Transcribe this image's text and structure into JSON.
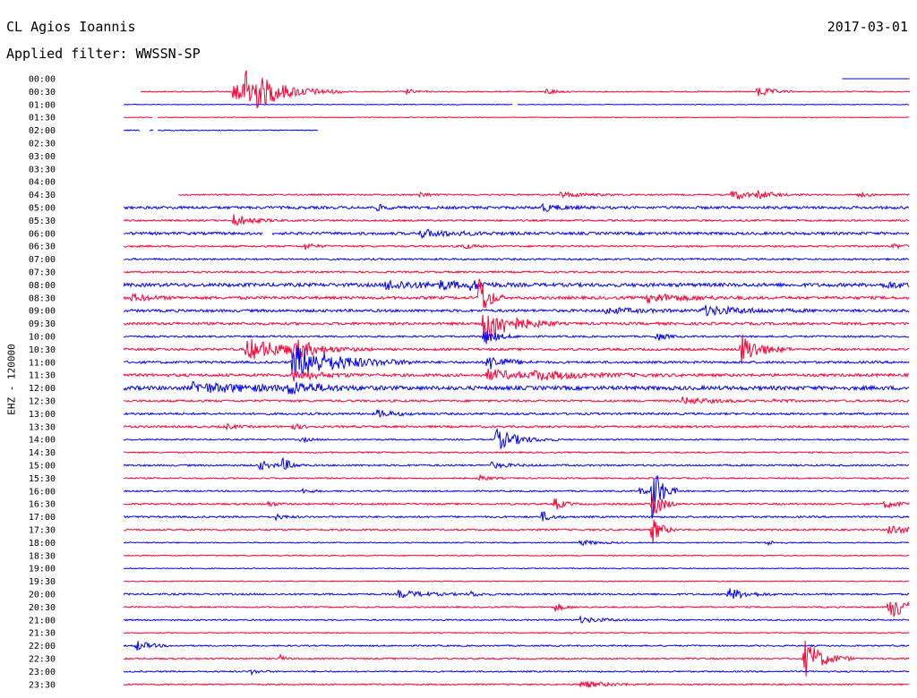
{
  "header": {
    "station": "CL Agios Ioannis",
    "date": "2017-03-01",
    "filter": "Applied filter: WWSSN-SP"
  },
  "chart_data": {
    "type": "line",
    "title": "CL Agios Ioannis",
    "ylabel": "EHZ - 120000",
    "trace_colors": [
      "#0000ff",
      "#ff0033"
    ],
    "rows": [
      {
        "label": "00:00",
        "start": 0.92,
        "end": 1.0,
        "noise": 0,
        "events": []
      },
      {
        "label": "00:30",
        "start": 0.09,
        "end": 1.0,
        "noise": 0.6,
        "events": [
          [
            0.2,
            12,
            0.02
          ],
          [
            0.205,
            10,
            0.01
          ],
          [
            0.215,
            22,
            0.04
          ],
          [
            0.405,
            3,
            0.01
          ],
          [
            0.57,
            4,
            0.01
          ],
          [
            0.82,
            7,
            0.015
          ]
        ],
        "gaps": []
      },
      {
        "label": "01:00",
        "start": 0.07,
        "end": 1.0,
        "noise": 0.4,
        "events": [],
        "gaps": [
          [
            0.53,
            0.536
          ]
        ]
      },
      {
        "label": "01:30",
        "start": 0.07,
        "end": 1.0,
        "noise": 0.4,
        "events": [],
        "gaps": [
          [
            0.104,
            0.11
          ]
        ]
      },
      {
        "label": "02:00",
        "start": 0.07,
        "end": 0.3,
        "noise": 0.5,
        "events": [],
        "gaps": [
          [
            0.09,
            0.1
          ],
          [
            0.105,
            0.11
          ]
        ]
      },
      {
        "label": "02:30",
        "start": 0,
        "end": 0,
        "noise": 0,
        "events": []
      },
      {
        "label": "03:00",
        "start": 0,
        "end": 0,
        "noise": 0,
        "events": []
      },
      {
        "label": "03:30",
        "start": 0,
        "end": 0,
        "noise": 0,
        "events": []
      },
      {
        "label": "04:00",
        "start": 0,
        "end": 0,
        "noise": 0,
        "events": []
      },
      {
        "label": "04:30",
        "start": 0.135,
        "end": 1.0,
        "noise": 0.8,
        "events": [
          [
            0.42,
            3,
            0.01
          ],
          [
            0.585,
            3,
            0.03
          ],
          [
            0.79,
            7,
            0.015
          ],
          [
            0.82,
            4,
            0.02
          ],
          [
            0.94,
            3,
            0.01
          ]
        ]
      },
      {
        "label": "05:00",
        "start": 0.07,
        "end": 1.0,
        "noise": 1.5,
        "events": [
          [
            0.565,
            4,
            0.02
          ],
          [
            0.37,
            3,
            0.01
          ]
        ]
      },
      {
        "label": "05:30",
        "start": 0.07,
        "end": 1.0,
        "noise": 1.0,
        "events": [
          [
            0.2,
            7,
            0.02
          ]
        ]
      },
      {
        "label": "06:00",
        "start": 0.07,
        "end": 1.0,
        "noise": 1.5,
        "events": [
          [
            0.42,
            4,
            0.04
          ]
        ],
        "gaps": [
          [
            0.235,
            0.245
          ]
        ]
      },
      {
        "label": "06:30",
        "start": 0.07,
        "end": 1.0,
        "noise": 1.0,
        "events": [
          [
            0.285,
            4,
            0.01
          ],
          [
            0.47,
            4,
            0.01
          ],
          [
            0.98,
            3,
            0.01
          ]
        ]
      },
      {
        "label": "07:00",
        "start": 0.07,
        "end": 1.0,
        "noise": 1.0,
        "events": []
      },
      {
        "label": "07:30",
        "start": 0.07,
        "end": 1.0,
        "noise": 1.0,
        "events": []
      },
      {
        "label": "08:00",
        "start": 0.07,
        "end": 1.0,
        "noise": 2.0,
        "events": [
          [
            0.38,
            5,
            0.04
          ],
          [
            0.445,
            4,
            0.02
          ],
          [
            0.48,
            4,
            0.02
          ],
          [
            0.97,
            3,
            0.03
          ]
        ]
      },
      {
        "label": "08:30",
        "start": 0.07,
        "end": 1.0,
        "noise": 1.6,
        "events": [
          [
            0.08,
            4,
            0.02
          ],
          [
            0.49,
            28,
            0.01
          ],
          [
            0.69,
            5,
            0.04
          ]
        ]
      },
      {
        "label": "09:00",
        "start": 0.07,
        "end": 1.0,
        "noise": 1.5,
        "events": [
          [
            0.755,
            5,
            0.05
          ],
          [
            0.64,
            3,
            0.04
          ]
        ]
      },
      {
        "label": "09:30",
        "start": 0.07,
        "end": 1.0,
        "noise": 1.5,
        "events": [
          [
            0.495,
            22,
            0.03
          ]
        ]
      },
      {
        "label": "10:00",
        "start": 0.07,
        "end": 1.0,
        "noise": 1.0,
        "events": [
          [
            0.495,
            10,
            0.015
          ],
          [
            0.7,
            5,
            0.01
          ]
        ]
      },
      {
        "label": "10:30",
        "start": 0.07,
        "end": 1.0,
        "noise": 1.3,
        "events": [
          [
            0.215,
            12,
            0.05
          ],
          [
            0.27,
            9,
            0.02
          ],
          [
            0.8,
            18,
            0.02
          ]
        ]
      },
      {
        "label": "11:00",
        "start": 0.07,
        "end": 1.0,
        "noise": 1.3,
        "events": [
          [
            0.27,
            20,
            0.05
          ],
          [
            0.5,
            9,
            0.02
          ]
        ]
      },
      {
        "label": "11:30",
        "start": 0.07,
        "end": 1.0,
        "noise": 1.6,
        "events": [
          [
            0.27,
            6,
            0.03
          ],
          [
            0.5,
            6,
            0.04
          ],
          [
            0.555,
            4,
            0.06
          ]
        ]
      },
      {
        "label": "12:00",
        "start": 0.07,
        "end": 1.0,
        "noise": 2.2,
        "events": [
          [
            0.15,
            5,
            0.08
          ],
          [
            0.265,
            6,
            0.03
          ]
        ]
      },
      {
        "label": "12:30",
        "start": 0.07,
        "end": 1.0,
        "noise": 1.2,
        "events": [
          [
            0.73,
            4,
            0.03
          ],
          [
            0.84,
            3,
            0.01
          ]
        ]
      },
      {
        "label": "13:00",
        "start": 0.07,
        "end": 1.0,
        "noise": 1.2,
        "events": [
          [
            0.37,
            4,
            0.02
          ]
        ]
      },
      {
        "label": "13:30",
        "start": 0.07,
        "end": 1.0,
        "noise": 1.2,
        "events": [
          [
            0.19,
            3,
            0.01
          ],
          [
            0.27,
            3,
            0.01
          ]
        ]
      },
      {
        "label": "14:00",
        "start": 0.07,
        "end": 1.0,
        "noise": 0.8,
        "events": [
          [
            0.51,
            12,
            0.025
          ],
          [
            0.28,
            3,
            0.01
          ]
        ]
      },
      {
        "label": "14:30",
        "start": 0.07,
        "end": 1.0,
        "noise": 0.8,
        "events": []
      },
      {
        "label": "15:00",
        "start": 0.07,
        "end": 1.0,
        "noise": 1.0,
        "events": [
          [
            0.23,
            5,
            0.015
          ],
          [
            0.258,
            7,
            0.01
          ],
          [
            0.505,
            3,
            0.02
          ]
        ]
      },
      {
        "label": "15:30",
        "start": 0.07,
        "end": 1.0,
        "noise": 0.8,
        "events": [
          [
            0.49,
            4,
            0.01
          ]
        ]
      },
      {
        "label": "16:00",
        "start": 0.07,
        "end": 1.0,
        "noise": 0.8,
        "events": [
          [
            0.28,
            3,
            0.01
          ],
          [
            0.68,
            3,
            0.02
          ],
          [
            0.695,
            34,
            0.01
          ]
        ]
      },
      {
        "label": "16:30",
        "start": 0.07,
        "end": 1.0,
        "noise": 1.0,
        "events": [
          [
            0.24,
            3,
            0.01
          ],
          [
            0.58,
            7,
            0.01
          ],
          [
            0.695,
            20,
            0.01
          ],
          [
            0.97,
            4,
            0.02
          ]
        ]
      },
      {
        "label": "17:00",
        "start": 0.07,
        "end": 1.0,
        "noise": 1.0,
        "events": [
          [
            0.25,
            3,
            0.01
          ],
          [
            0.565,
            6,
            0.01
          ]
        ]
      },
      {
        "label": "17:30",
        "start": 0.07,
        "end": 1.0,
        "noise": 1.0,
        "events": [
          [
            0.695,
            16,
            0.01
          ],
          [
            0.975,
            6,
            0.02
          ]
        ]
      },
      {
        "label": "18:00",
        "start": 0.07,
        "end": 1.0,
        "noise": 0.6,
        "events": [
          [
            0.61,
            3,
            0.02
          ],
          [
            0.83,
            3,
            0.01
          ]
        ]
      },
      {
        "label": "18:30",
        "start": 0.07,
        "end": 1.0,
        "noise": 0.6,
        "events": []
      },
      {
        "label": "19:00",
        "start": 0.07,
        "end": 1.0,
        "noise": 0.5,
        "events": []
      },
      {
        "label": "19:30",
        "start": 0.07,
        "end": 1.0,
        "noise": 0.5,
        "events": []
      },
      {
        "label": "20:00",
        "start": 0.07,
        "end": 1.0,
        "noise": 1.0,
        "events": [
          [
            0.395,
            4,
            0.03
          ],
          [
            0.48,
            3,
            0.01
          ],
          [
            0.785,
            7,
            0.02
          ]
        ]
      },
      {
        "label": "20:30",
        "start": 0.07,
        "end": 1.0,
        "noise": 0.8,
        "events": [
          [
            0.58,
            5,
            0.01
          ],
          [
            0.975,
            14,
            0.02
          ]
        ]
      },
      {
        "label": "21:00",
        "start": 0.07,
        "end": 1.0,
        "noise": 0.8,
        "events": [
          [
            0.61,
            3,
            0.03
          ]
        ]
      },
      {
        "label": "21:30",
        "start": 0.07,
        "end": 1.0,
        "noise": 0.6,
        "events": []
      },
      {
        "label": "22:00",
        "start": 0.07,
        "end": 1.0,
        "noise": 0.8,
        "events": [
          [
            0.085,
            6,
            0.015
          ]
        ]
      },
      {
        "label": "22:30",
        "start": 0.07,
        "end": 1.0,
        "noise": 0.8,
        "events": [
          [
            0.255,
            4,
            0.005
          ],
          [
            0.875,
            22,
            0.02
          ]
        ]
      },
      {
        "label": "23:00",
        "start": 0.07,
        "end": 1.0,
        "noise": 0.8,
        "events": [
          [
            0.22,
            3,
            0.01
          ]
        ]
      },
      {
        "label": "23:30",
        "start": 0.07,
        "end": 1.0,
        "noise": 0.8,
        "events": [
          [
            0.61,
            4,
            0.03
          ]
        ]
      }
    ]
  }
}
